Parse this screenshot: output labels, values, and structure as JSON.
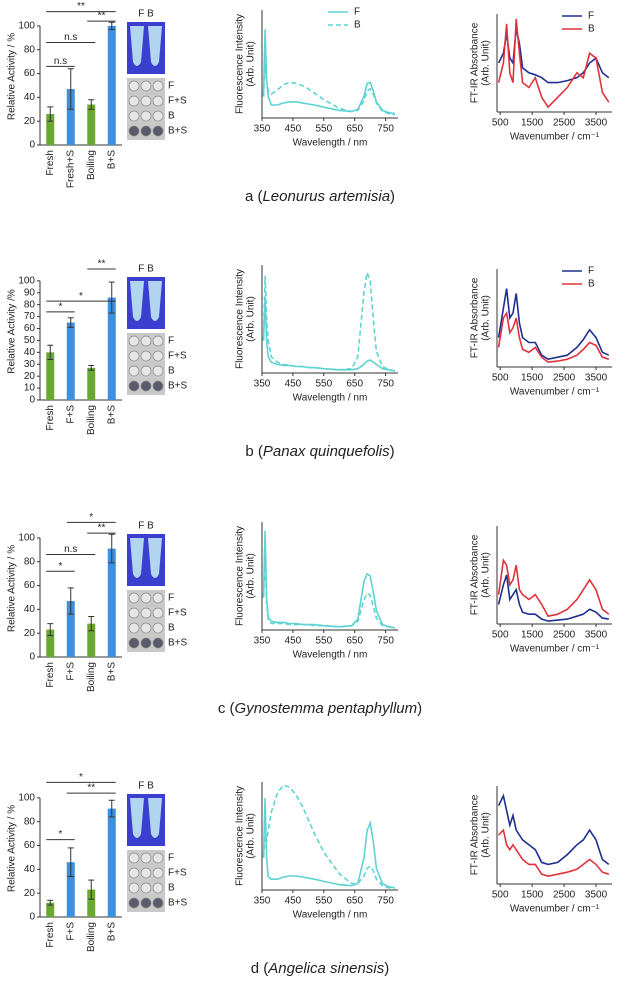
{
  "chart_data": [
    {
      "type": "bar",
      "ylabel": "Relative Activity / %",
      "categories": [
        "Fresh",
        "Fresh+S",
        "Boiling",
        "B+S"
      ],
      "values": [
        26,
        47,
        34,
        100
      ],
      "errors": [
        6,
        17,
        4,
        3
      ],
      "colors": [
        "#6aa832",
        "#3d8fe0",
        "#6aa832",
        "#3d8fe0"
      ],
      "ylim": [
        0,
        115
      ],
      "yticks": [
        0,
        20,
        40,
        60,
        80,
        100
      ],
      "annotations": [
        "**",
        "**",
        "n.s",
        "n.s"
      ]
    },
    {
      "type": "line",
      "xlabel": "Wavelength / nm",
      "ylabel": [
        "Fluorescence Intensity",
        "(Arb. Unit)"
      ],
      "legend": "upper right",
      "x": [
        355,
        360,
        365,
        370,
        380,
        400,
        420,
        440,
        460,
        480,
        500,
        520,
        550,
        600,
        640,
        660,
        680,
        690,
        700,
        710,
        720,
        740,
        760,
        780
      ],
      "xlim": [
        350,
        790
      ],
      "xticks": [
        350,
        450,
        550,
        650,
        750
      ],
      "ylim": [
        0,
        1
      ],
      "series": [
        {
          "name": "F",
          "color": "#5ed3d3",
          "style": "solid",
          "values": [
            0.2,
            0.82,
            0.35,
            0.2,
            0.12,
            0.12,
            0.14,
            0.15,
            0.15,
            0.14,
            0.13,
            0.12,
            0.1,
            0.07,
            0.06,
            0.08,
            0.2,
            0.32,
            0.33,
            0.25,
            0.15,
            0.07,
            0.05,
            0.04
          ]
        },
        {
          "name": "B",
          "color": "#5ed3d3",
          "style": "dashed",
          "values": [
            0.2,
            0.5,
            0.35,
            0.25,
            0.22,
            0.26,
            0.31,
            0.33,
            0.32,
            0.3,
            0.27,
            0.23,
            0.17,
            0.09,
            0.06,
            0.07,
            0.16,
            0.25,
            0.27,
            0.22,
            0.14,
            0.06,
            0.04,
            0.03
          ]
        }
      ]
    },
    {
      "type": "line",
      "xlabel": "Wavenumber / cm⁻¹",
      "ylabel": [
        "FT-IR Absorbance",
        "(Arb. Unit)"
      ],
      "legend": "upper right",
      "x": [
        450,
        600,
        700,
        800,
        900,
        1000,
        1100,
        1200,
        1400,
        1600,
        1800,
        2000,
        2300,
        2600,
        2900,
        3100,
        3300,
        3500,
        3700,
        3900
      ],
      "xlim": [
        400,
        4000
      ],
      "xticks": [
        500,
        1500,
        2500,
        3500
      ],
      "ylim": [
        0,
        1
      ],
      "series": [
        {
          "name": "F",
          "color": "#1f2f8f",
          "style": "solid",
          "values": [
            0.5,
            0.6,
            0.8,
            0.55,
            0.5,
            0.85,
            0.7,
            0.45,
            0.4,
            0.38,
            0.35,
            0.3,
            0.3,
            0.32,
            0.35,
            0.4,
            0.5,
            0.55,
            0.4,
            0.35
          ]
        },
        {
          "name": "B",
          "color": "#e0323c",
          "style": "solid",
          "values": [
            0.3,
            0.5,
            0.9,
            0.4,
            0.3,
            0.95,
            0.6,
            0.3,
            0.25,
            0.35,
            0.15,
            0.05,
            0.15,
            0.25,
            0.4,
            0.35,
            0.6,
            0.55,
            0.2,
            0.1
          ]
        }
      ]
    },
    {
      "type": "bar",
      "ylabel": "Relative Activity /%",
      "categories": [
        "Fresh",
        "F+S",
        "Boiling",
        "B+S"
      ],
      "values": [
        40,
        65,
        27,
        86
      ],
      "errors": [
        6,
        4,
        2,
        13
      ],
      "colors": [
        "#6aa832",
        "#3d8fe0",
        "#6aa832",
        "#3d8fe0"
      ],
      "ylim": [
        0,
        115
      ],
      "yticks": [
        0,
        10,
        20,
        30,
        40,
        50,
        60,
        70,
        80,
        90,
        100
      ],
      "annotations": [
        "**",
        "*",
        "*"
      ]
    },
    {
      "type": "line",
      "xlabel": "Wavelength / nm",
      "ylabel": [
        "Fluorescence Intensity",
        "(Arb. Unit)"
      ],
      "x": [
        355,
        360,
        365,
        370,
        380,
        400,
        420,
        440,
        460,
        480,
        500,
        520,
        550,
        600,
        640,
        660,
        680,
        690,
        700,
        710,
        720,
        740,
        760,
        780
      ],
      "xlim": [
        350,
        790
      ],
      "xticks": [
        350,
        450,
        550,
        650,
        750
      ],
      "ylim": [
        0,
        1
      ],
      "series": [
        {
          "color": "#5ed3d3",
          "style": "solid",
          "values": [
            0.3,
            0.7,
            0.3,
            0.15,
            0.1,
            0.08,
            0.07,
            0.07,
            0.06,
            0.06,
            0.05,
            0.05,
            0.04,
            0.03,
            0.03,
            0.04,
            0.08,
            0.11,
            0.12,
            0.1,
            0.08,
            0.04,
            0.03,
            0.02
          ]
        },
        {
          "color": "#5ed3d3",
          "style": "dashed",
          "values": [
            0.3,
            0.9,
            0.5,
            0.3,
            0.15,
            0.1,
            0.08,
            0.07,
            0.06,
            0.06,
            0.05,
            0.05,
            0.04,
            0.03,
            0.04,
            0.15,
            0.75,
            0.93,
            0.85,
            0.5,
            0.2,
            0.06,
            0.03,
            0.02
          ]
        }
      ]
    },
    {
      "type": "line",
      "xlabel": "Wavenumber / cm⁻¹",
      "ylabel": [
        "FT-IR Absorbance",
        "(Arb. Unit)"
      ],
      "legend": "upper right",
      "x": [
        450,
        600,
        700,
        800,
        900,
        1000,
        1100,
        1200,
        1400,
        1600,
        1800,
        2000,
        2300,
        2600,
        2900,
        3100,
        3300,
        3500,
        3700,
        3900
      ],
      "xlim": [
        400,
        4000
      ],
      "xticks": [
        500,
        1500,
        2500,
        3500
      ],
      "ylim": [
        0,
        1
      ],
      "series": [
        {
          "name": "F",
          "color": "#1f2f8f",
          "style": "solid",
          "values": [
            0.3,
            0.6,
            0.8,
            0.5,
            0.55,
            0.75,
            0.45,
            0.3,
            0.25,
            0.25,
            0.12,
            0.08,
            0.1,
            0.12,
            0.2,
            0.28,
            0.38,
            0.3,
            0.15,
            0.12
          ]
        },
        {
          "name": "B",
          "color": "#e0323c",
          "style": "solid",
          "values": [
            0.2,
            0.5,
            0.55,
            0.35,
            0.4,
            0.5,
            0.3,
            0.18,
            0.15,
            0.2,
            0.1,
            0.05,
            0.06,
            0.08,
            0.12,
            0.18,
            0.25,
            0.22,
            0.1,
            0.08
          ]
        }
      ]
    },
    {
      "type": "bar",
      "ylabel": "Relative Activity / %",
      "categories": [
        "Fresh",
        "F+S",
        "Boiling",
        "B+S"
      ],
      "values": [
        23,
        47,
        28,
        91
      ],
      "errors": [
        5,
        11,
        6,
        12
      ],
      "colors": [
        "#6aa832",
        "#3d8fe0",
        "#6aa832",
        "#3d8fe0"
      ],
      "ylim": [
        0,
        115
      ],
      "yticks": [
        0,
        20,
        40,
        60,
        80,
        100
      ],
      "annotations": [
        "*",
        "**",
        "n.s",
        "*"
      ]
    },
    {
      "type": "line",
      "xlabel": "Wavelength / nm",
      "ylabel": [
        "Fluorescence Intensity",
        "(Arb. Unit)"
      ],
      "x": [
        355,
        360,
        365,
        370,
        380,
        400,
        420,
        440,
        460,
        480,
        500,
        520,
        550,
        600,
        640,
        660,
        680,
        690,
        700,
        710,
        720,
        740,
        760,
        780
      ],
      "xlim": [
        350,
        790
      ],
      "xticks": [
        350,
        450,
        550,
        650,
        750
      ],
      "ylim": [
        0,
        1
      ],
      "series": [
        {
          "color": "#5ed3d3",
          "style": "solid",
          "values": [
            0.3,
            0.92,
            0.3,
            0.12,
            0.08,
            0.07,
            0.07,
            0.06,
            0.06,
            0.05,
            0.05,
            0.05,
            0.04,
            0.03,
            0.04,
            0.1,
            0.45,
            0.52,
            0.5,
            0.35,
            0.18,
            0.05,
            0.03,
            0.02
          ]
        },
        {
          "color": "#5ed3d3",
          "style": "dashed",
          "values": [
            0.3,
            0.7,
            0.25,
            0.1,
            0.06,
            0.06,
            0.06,
            0.05,
            0.05,
            0.05,
            0.05,
            0.04,
            0.04,
            0.03,
            0.04,
            0.08,
            0.28,
            0.34,
            0.32,
            0.22,
            0.11,
            0.04,
            0.03,
            0.02
          ]
        }
      ]
    },
    {
      "type": "line",
      "xlabel": "Wavenumber / cm⁻¹",
      "ylabel": [
        "FT-IR Absorbance",
        "(Arb. Unit)"
      ],
      "x": [
        450,
        600,
        700,
        800,
        900,
        1000,
        1100,
        1200,
        1400,
        1600,
        1800,
        2000,
        2300,
        2600,
        2900,
        3100,
        3300,
        3500,
        3700,
        3900
      ],
      "xlim": [
        400,
        4000
      ],
      "xticks": [
        500,
        1500,
        2500,
        3500
      ],
      "ylim": [
        0,
        1
      ],
      "series": [
        {
          "color": "#1f2f8f",
          "style": "solid",
          "values": [
            0.2,
            0.4,
            0.5,
            0.25,
            0.3,
            0.35,
            0.2,
            0.12,
            0.1,
            0.1,
            0.05,
            0.03,
            0.04,
            0.05,
            0.08,
            0.1,
            0.15,
            0.12,
            0.06,
            0.05
          ]
        },
        {
          "color": "#e0323c",
          "style": "solid",
          "values": [
            0.3,
            0.65,
            0.6,
            0.4,
            0.45,
            0.6,
            0.35,
            0.3,
            0.25,
            0.3,
            0.2,
            0.08,
            0.1,
            0.15,
            0.25,
            0.35,
            0.45,
            0.35,
            0.15,
            0.1
          ]
        }
      ]
    },
    {
      "type": "bar",
      "ylabel": "Relative Activity / %",
      "categories": [
        "Fresh",
        "F+S",
        "Boiling",
        "B+S"
      ],
      "values": [
        12,
        46,
        23,
        91
      ],
      "errors": [
        2,
        12,
        8,
        7
      ],
      "colors": [
        "#6aa832",
        "#3d8fe0",
        "#6aa832",
        "#3d8fe0"
      ],
      "ylim": [
        0,
        115
      ],
      "yticks": [
        0,
        20,
        40,
        60,
        80,
        100
      ],
      "annotations": [
        "*",
        "**",
        "*"
      ]
    },
    {
      "type": "line",
      "xlabel": "Wavelength / nm",
      "ylabel": [
        "Fluorescence Intensity",
        "(Arb. Unit)"
      ],
      "x": [
        355,
        360,
        365,
        370,
        380,
        400,
        420,
        440,
        460,
        480,
        500,
        520,
        550,
        600,
        640,
        660,
        680,
        690,
        700,
        710,
        720,
        740,
        760,
        780
      ],
      "xlim": [
        350,
        790
      ],
      "xticks": [
        350,
        450,
        550,
        650,
        750
      ],
      "ylim": [
        0,
        1
      ],
      "series": [
        {
          "color": "#5ed3d3",
          "style": "solid",
          "values": [
            0.3,
            0.85,
            0.3,
            0.12,
            0.1,
            0.1,
            0.12,
            0.13,
            0.13,
            0.12,
            0.11,
            0.1,
            0.08,
            0.05,
            0.04,
            0.06,
            0.3,
            0.55,
            0.62,
            0.45,
            0.2,
            0.06,
            0.03,
            0.02
          ]
        },
        {
          "color": "#5ed3d3",
          "style": "dashed",
          "values": [
            0.3,
            0.5,
            0.45,
            0.55,
            0.72,
            0.9,
            0.97,
            0.95,
            0.88,
            0.78,
            0.65,
            0.52,
            0.35,
            0.15,
            0.06,
            0.06,
            0.13,
            0.2,
            0.22,
            0.18,
            0.1,
            0.04,
            0.02,
            0.02
          ]
        }
      ]
    },
    {
      "type": "line",
      "xlabel": "Wavenumber / cm⁻¹",
      "ylabel": [
        "FT-IR Absorbance",
        "(Arb. Unit)"
      ],
      "x": [
        450,
        600,
        700,
        800,
        900,
        1000,
        1100,
        1200,
        1400,
        1600,
        1800,
        2000,
        2300,
        2600,
        2900,
        3100,
        3300,
        3500,
        3700,
        3900
      ],
      "xlim": [
        400,
        4000
      ],
      "xticks": [
        500,
        1500,
        2500,
        3500
      ],
      "ylim": [
        0,
        1
      ],
      "series": [
        {
          "color": "#1f2f8f",
          "style": "solid",
          "values": [
            0.8,
            0.9,
            0.75,
            0.6,
            0.7,
            0.55,
            0.5,
            0.45,
            0.4,
            0.35,
            0.22,
            0.2,
            0.22,
            0.3,
            0.4,
            0.45,
            0.55,
            0.45,
            0.25,
            0.2
          ]
        },
        {
          "color": "#e0323c",
          "style": "solid",
          "values": [
            0.5,
            0.55,
            0.4,
            0.35,
            0.4,
            0.35,
            0.3,
            0.25,
            0.2,
            0.2,
            0.1,
            0.08,
            0.1,
            0.12,
            0.15,
            0.2,
            0.25,
            0.2,
            0.12,
            0.1
          ]
        }
      ]
    }
  ],
  "panels": [
    {
      "prefix": "a (",
      "species": "Leonurus artemisia",
      "suffix": ")",
      "tubes": "F B",
      "wells": [
        "F",
        "F+S",
        "B",
        "B+S"
      ]
    },
    {
      "prefix": "b (",
      "species": "Panax quinquefolis",
      "suffix": ")",
      "tubes": "F B",
      "wells": [
        "F",
        "F+S",
        "B",
        "B+S"
      ]
    },
    {
      "prefix": "c (",
      "species": "Gynostemma pentaphyllum",
      "suffix": ")",
      "tubes": "F B",
      "wells": [
        "F",
        "F+S",
        "B",
        "B+S"
      ]
    },
    {
      "prefix": "d (",
      "species": "Angelica sinensis",
      "suffix": ")",
      "tubes": "F B",
      "wells": [
        "F",
        "F+S",
        "B",
        "B+S"
      ]
    }
  ]
}
